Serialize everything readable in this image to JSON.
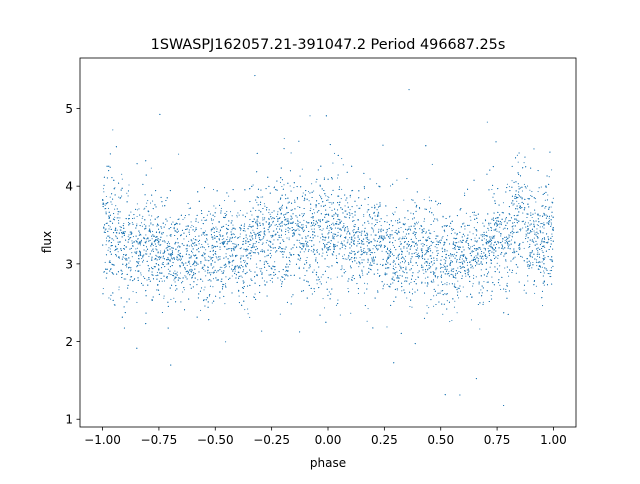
{
  "chart_data": {
    "type": "scatter",
    "title": "1SWASPJ162057.21-391047.2 Period 496687.25s",
    "xlabel": "phase",
    "ylabel": "flux",
    "xlim": [
      -1.1,
      1.1
    ],
    "ylim": [
      0.9,
      5.65
    ],
    "x_ticks": [
      -1.0,
      -0.75,
      -0.5,
      -0.25,
      0.0,
      0.25,
      0.5,
      0.75,
      1.0
    ],
    "x_tick_labels": [
      "−1.00",
      "−0.75",
      "−0.50",
      "−0.25",
      "0.00",
      "0.25",
      "0.50",
      "0.75",
      "1.00"
    ],
    "y_ticks": [
      1,
      2,
      3,
      4,
      5
    ],
    "y_tick_labels": [
      "1",
      "2",
      "3",
      "4",
      "5"
    ],
    "grid": false,
    "legend": "none",
    "marker_color": "#1f77b4",
    "series": [
      {
        "phase_binned_profile": {
          "phase": [
            -1.0,
            -0.95,
            -0.9,
            -0.85,
            -0.8,
            -0.75,
            -0.7,
            -0.65,
            -0.6,
            -0.55,
            -0.5,
            -0.45,
            -0.4,
            -0.35,
            -0.3,
            -0.25,
            -0.2,
            -0.15,
            -0.1,
            -0.05,
            0.0,
            0.05,
            0.1,
            0.15,
            0.2,
            0.25,
            0.3,
            0.35,
            0.4,
            0.45,
            0.5,
            0.55,
            0.6,
            0.65,
            0.7,
            0.75,
            0.8,
            0.85,
            0.9,
            0.95,
            1.0
          ],
          "median_flux": [
            3.5,
            3.4,
            3.2,
            3.15,
            3.25,
            3.2,
            3.1,
            3.15,
            3.2,
            3.1,
            3.15,
            3.2,
            3.1,
            3.2,
            3.35,
            3.3,
            3.45,
            3.4,
            3.3,
            3.35,
            3.5,
            3.4,
            3.3,
            3.25,
            3.3,
            3.2,
            3.15,
            3.1,
            3.2,
            3.15,
            3.1,
            3.05,
            3.15,
            3.1,
            3.15,
            3.3,
            3.45,
            3.55,
            3.35,
            3.25,
            3.4
          ],
          "scatter_sd": [
            0.45,
            0.4,
            0.35,
            0.3,
            0.35,
            0.3,
            0.3,
            0.3,
            0.3,
            0.3,
            0.3,
            0.3,
            0.3,
            0.35,
            0.35,
            0.3,
            0.35,
            0.35,
            0.35,
            0.35,
            0.45,
            0.35,
            0.35,
            0.3,
            0.3,
            0.3,
            0.3,
            0.3,
            0.3,
            0.3,
            0.3,
            0.3,
            0.3,
            0.3,
            0.3,
            0.3,
            0.35,
            0.35,
            0.35,
            0.35,
            0.35
          ]
        },
        "n_points": 9000,
        "flux_range": [
          1.1,
          5.55
        ]
      }
    ]
  }
}
